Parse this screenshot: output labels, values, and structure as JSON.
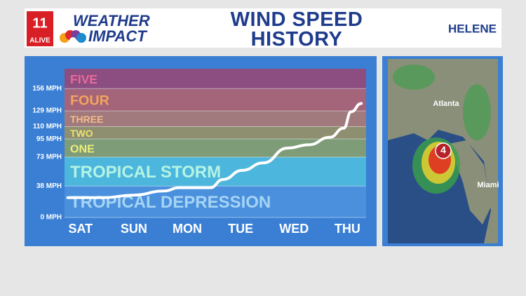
{
  "header": {
    "logo_number": "11",
    "logo_text": "ALIVE",
    "brand_top": "WEATHER",
    "brand_bottom": "IMPACT",
    "storm": "HELENE"
  },
  "chart_data": {
    "type": "line",
    "title": "WIND SPEED HISTORY",
    "xlim": [
      -0.3,
      5.35
    ],
    "xticks": [
      {
        "value": 0,
        "label": "SAT"
      },
      {
        "value": 1,
        "label": "SUN"
      },
      {
        "value": 2,
        "label": "MON"
      },
      {
        "value": 3,
        "label": "TUE"
      },
      {
        "value": 4,
        "label": "WED"
      },
      {
        "value": 5,
        "label": "THU"
      }
    ],
    "ylim": [
      0,
      180
    ],
    "yticks": [
      {
        "value": 0,
        "label": "0 MPH"
      },
      {
        "value": 38,
        "label": "38 MPH"
      },
      {
        "value": 73,
        "label": "73 MPH"
      },
      {
        "value": 95,
        "label": "95 MPH"
      },
      {
        "value": 110,
        "label": "110 MPH"
      },
      {
        "value": 129,
        "label": "129 MPH"
      },
      {
        "value": 156,
        "label": "156 MPH"
      }
    ],
    "bands": [
      {
        "label": "TROPICAL DEPRESSION",
        "color": "#4a90dc",
        "text_color": "#a6d4f6"
      },
      {
        "label": "TROPICAL STORM",
        "color": "#4cb6dc",
        "text_color": "#b4f4e4"
      },
      {
        "label": "ONE",
        "color": "#7e9c78",
        "text_color": "#ecec78"
      },
      {
        "label": "TWO",
        "color": "#8e8f70",
        "text_color": "#ece070"
      },
      {
        "label": "THREE",
        "color": "#a07a7c",
        "text_color": "#f4bc8c"
      },
      {
        "label": "FOUR",
        "color": "#a4647a",
        "text_color": "#f4a45c"
      },
      {
        "label": "FIVE",
        "color": "#8c4e80",
        "text_color": "#e86a9c"
      }
    ],
    "series": [
      {
        "name": "Helene",
        "color": "#ffffff",
        "x": [
          -0.24,
          0.45,
          0.98,
          1.57,
          1.84,
          2.43,
          2.67,
          3.03,
          3.42,
          3.88,
          4.28,
          4.67,
          4.93,
          5.07,
          5.26
        ],
        "values": [
          24,
          24,
          27,
          32,
          36,
          36,
          46,
          57,
          66,
          84,
          88,
          97,
          108,
          128,
          138
        ]
      }
    ]
  },
  "map": {
    "labels": [
      "Atlanta",
      "Miami"
    ],
    "category": "4"
  }
}
